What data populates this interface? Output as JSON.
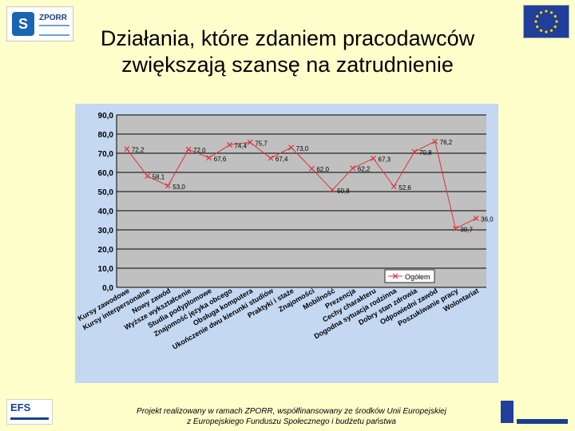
{
  "header": {
    "title_line1": "Działania, które zdaniem pracodawców",
    "title_line2": "zwiększają szansę na zatrudnienie",
    "logo_left_text": "ZPORR"
  },
  "footer": {
    "line1": "Projekt realizowany w ramach ZPORR, współfinansowany ze środków Unii Europejskiej",
    "line2": "z Europejskiego Funduszu Społecznego i budżetu państwa",
    "logo_left_text": "EFS"
  },
  "colors": {
    "background": "#ffffcc",
    "plot_area": "#c0c0c0",
    "chart_bg": "#c4d8f2",
    "series": "#e0303a",
    "marker": "#e0303a"
  },
  "chart_data": {
    "type": "line",
    "title": "",
    "xlabel": "",
    "ylabel": "",
    "ylim": [
      0,
      90
    ],
    "yticks": [
      "0,0",
      "10,0",
      "20,0",
      "30,0",
      "40,0",
      "50,0",
      "60,0",
      "70,0",
      "80,0",
      "90,0"
    ],
    "categories": [
      "Kursy zawodowe",
      "Kursy interpersonalne",
      "Nowy zawód",
      "Wyższe wykształcenie",
      "Studia podyplomowe",
      "Znajomość języka obcego",
      "Obsługa komputera",
      "Ukończenie dwu kierunki studiów",
      "Praktyki i staże",
      "Znajomości",
      "Mobilność",
      "Prezencja",
      "Cechy charakteru",
      "Dogodna sytuacja rodzinna",
      "Dobry stan zdrowia",
      "Odpowiedni zawód",
      "Poszukiwanie pracy",
      "Wolontariat"
    ],
    "series": [
      {
        "name": "Ogółem",
        "values": [
          72.2,
          58.1,
          53.0,
          72.0,
          67.6,
          74.4,
          75.7,
          67.4,
          73.0,
          62.0,
          50.8,
          62.2,
          67.3,
          52.6,
          70.8,
          76.2,
          30.7,
          36.0
        ],
        "labels": [
          "72,2",
          "58,1",
          "53,0",
          "72,0",
          "67,6",
          "74,4",
          "75,7",
          "67,4",
          "73,0",
          "62,0",
          "50,8",
          "62,2",
          "67,3",
          "52,6",
          "70,8",
          "76,2",
          "30,7",
          "36,0"
        ]
      }
    ],
    "legend": "right-middle"
  }
}
